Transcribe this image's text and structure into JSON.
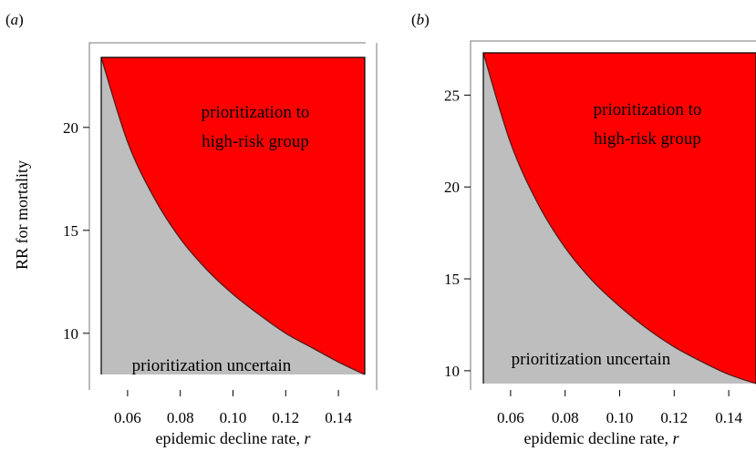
{
  "chart_data": [
    {
      "panel_label": "(a)",
      "type": "area",
      "xlabel": "epidemic decline rate, r",
      "ylabel": "RR for mortality",
      "xlim": [
        0.05,
        0.15
      ],
      "ylim": [
        8.0,
        23.4
      ],
      "xticks": [
        0.06,
        0.08,
        0.1,
        0.12,
        0.14
      ],
      "xtick_labels": [
        "0.06",
        "0.08",
        "0.10",
        "0.12",
        "0.14"
      ],
      "yticks": [
        10,
        15,
        20
      ],
      "ytick_labels": [
        "10",
        "15",
        "20"
      ],
      "boundary": {
        "x": [
          0.05,
          0.06,
          0.07,
          0.08,
          0.09,
          0.1,
          0.11,
          0.12,
          0.13,
          0.14,
          0.15
        ],
        "y": [
          23.4,
          19.3,
          16.6,
          14.6,
          13.1,
          11.9,
          10.9,
          10.0,
          9.3,
          8.6,
          8.0
        ]
      },
      "regions": [
        {
          "label": "prioritization to high-risk group",
          "lines": [
            "prioritization to",
            "high-risk group"
          ],
          "color": "#ff0000",
          "side": "above"
        },
        {
          "label": "prioritization uncertain",
          "lines": [
            "prioritization uncertain"
          ],
          "color": "#bebebe",
          "side": "below"
        }
      ]
    },
    {
      "panel_label": "(b)",
      "type": "area",
      "xlabel": "epidemic decline rate, r",
      "ylabel": "",
      "xlim": [
        0.05,
        0.15
      ],
      "ylim": [
        9.3,
        27.3
      ],
      "xticks": [
        0.06,
        0.08,
        0.1,
        0.12,
        0.14
      ],
      "xtick_labels": [
        "0.06",
        "0.08",
        "0.10",
        "0.12",
        "0.14"
      ],
      "yticks": [
        10,
        15,
        20,
        25
      ],
      "ytick_labels": [
        "10",
        "15",
        "20",
        "25"
      ],
      "boundary": {
        "x": [
          0.05,
          0.06,
          0.07,
          0.08,
          0.09,
          0.1,
          0.11,
          0.12,
          0.13,
          0.14,
          0.15
        ],
        "y": [
          27.3,
          22.4,
          19.1,
          16.7,
          14.9,
          13.5,
          12.3,
          11.3,
          10.5,
          9.8,
          9.3
        ]
      },
      "regions": [
        {
          "label": "prioritization to high-risk group",
          "lines": [
            "prioritization to",
            "high-risk group"
          ],
          "color": "#ff0000",
          "side": "above"
        },
        {
          "label": "prioritization uncertain",
          "lines": [
            "prioritization uncertain"
          ],
          "color": "#bebebe",
          "side": "below"
        }
      ]
    }
  ]
}
